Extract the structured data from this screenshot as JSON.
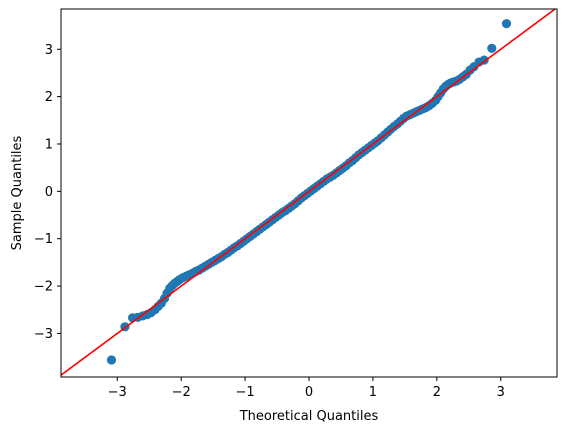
{
  "chart_data": {
    "type": "scatter",
    "title": "",
    "xlabel": "Theoretical Quantiles",
    "ylabel": "Sample Quantiles",
    "xlim": [
      -3.88,
      3.88
    ],
    "ylim": [
      -3.92,
      3.85
    ],
    "x_ticks": [
      -3,
      -2,
      -1,
      0,
      1,
      2,
      3
    ],
    "y_ticks": [
      -3,
      -2,
      -1,
      0,
      1,
      2,
      3
    ],
    "x_tick_labels": [
      "−3",
      "−2",
      "−1",
      "0",
      "1",
      "2",
      "3"
    ],
    "y_tick_labels": [
      "−3",
      "−2",
      "−1",
      "0",
      "1",
      "2",
      "3"
    ],
    "grid": false,
    "reference_line": {
      "slope": 1,
      "intercept": 0,
      "color": "#ff0000"
    },
    "point_color": "#1f77b4",
    "points": [
      [
        -3.09,
        -3.56
      ],
      [
        -2.88,
        -2.86
      ],
      [
        -2.76,
        -2.67
      ],
      [
        -2.68,
        -2.66
      ],
      [
        -2.6,
        -2.63
      ],
      [
        -2.53,
        -2.6
      ],
      [
        -2.47,
        -2.56
      ],
      [
        -2.41,
        -2.5
      ],
      [
        -2.36,
        -2.43
      ],
      [
        -2.31,
        -2.36
      ],
      [
        -2.26,
        -2.26
      ],
      [
        -2.22,
        -2.15
      ],
      [
        -2.18,
        -2.05
      ],
      [
        -2.14,
        -1.99
      ],
      [
        -2.1,
        -1.94
      ],
      [
        -2.06,
        -1.9
      ],
      [
        -2.02,
        -1.86
      ],
      [
        -1.97,
        -1.82
      ],
      [
        -1.92,
        -1.79
      ],
      [
        -1.87,
        -1.76
      ],
      [
        -1.82,
        -1.73
      ],
      [
        -1.77,
        -1.69
      ],
      [
        -1.72,
        -1.66
      ],
      [
        -1.67,
        -1.62
      ],
      [
        -1.62,
        -1.58
      ],
      [
        -1.57,
        -1.54
      ],
      [
        -1.52,
        -1.5
      ],
      [
        -1.47,
        -1.46
      ],
      [
        -1.42,
        -1.42
      ],
      [
        -1.37,
        -1.38
      ],
      [
        -1.32,
        -1.33
      ],
      [
        -1.27,
        -1.29
      ],
      [
        -1.22,
        -1.24
      ],
      [
        -1.17,
        -1.19
      ],
      [
        -1.12,
        -1.15
      ],
      [
        -1.07,
        -1.1
      ],
      [
        -1.02,
        -1.05
      ],
      [
        -0.97,
        -1.0
      ],
      [
        -0.92,
        -0.95
      ],
      [
        -0.87,
        -0.9
      ],
      [
        -0.82,
        -0.85
      ],
      [
        -0.77,
        -0.8
      ],
      [
        -0.72,
        -0.75
      ],
      [
        -0.67,
        -0.7
      ],
      [
        -0.62,
        -0.65
      ],
      [
        -0.57,
        -0.6
      ],
      [
        -0.52,
        -0.55
      ],
      [
        -0.47,
        -0.5
      ],
      [
        -0.42,
        -0.45
      ],
      [
        -0.37,
        -0.41
      ],
      [
        -0.32,
        -0.36
      ],
      [
        -0.27,
        -0.31
      ],
      [
        -0.22,
        -0.26
      ],
      [
        -0.17,
        -0.2
      ],
      [
        -0.12,
        -0.14
      ],
      [
        -0.07,
        -0.09
      ],
      [
        -0.02,
        -0.04
      ],
      [
        0.03,
        0.01
      ],
      [
        0.08,
        0.06
      ],
      [
        0.13,
        0.11
      ],
      [
        0.18,
        0.16
      ],
      [
        0.23,
        0.21
      ],
      [
        0.28,
        0.26
      ],
      [
        0.33,
        0.3
      ],
      [
        0.38,
        0.34
      ],
      [
        0.43,
        0.39
      ],
      [
        0.48,
        0.44
      ],
      [
        0.53,
        0.49
      ],
      [
        0.58,
        0.54
      ],
      [
        0.63,
        0.6
      ],
      [
        0.68,
        0.65
      ],
      [
        0.73,
        0.71
      ],
      [
        0.78,
        0.77
      ],
      [
        0.83,
        0.82
      ],
      [
        0.88,
        0.87
      ],
      [
        0.93,
        0.92
      ],
      [
        0.98,
        0.97
      ],
      [
        1.03,
        1.02
      ],
      [
        1.08,
        1.07
      ],
      [
        1.13,
        1.13
      ],
      [
        1.18,
        1.19
      ],
      [
        1.23,
        1.25
      ],
      [
        1.28,
        1.31
      ],
      [
        1.33,
        1.37
      ],
      [
        1.38,
        1.42
      ],
      [
        1.43,
        1.48
      ],
      [
        1.48,
        1.54
      ],
      [
        1.53,
        1.59
      ],
      [
        1.58,
        1.62
      ],
      [
        1.63,
        1.65
      ],
      [
        1.68,
        1.68
      ],
      [
        1.73,
        1.71
      ],
      [
        1.78,
        1.74
      ],
      [
        1.83,
        1.77
      ],
      [
        1.88,
        1.81
      ],
      [
        1.93,
        1.86
      ],
      [
        1.98,
        1.92
      ],
      [
        2.02,
        2.0
      ],
      [
        2.06,
        2.08
      ],
      [
        2.1,
        2.16
      ],
      [
        2.14,
        2.22
      ],
      [
        2.18,
        2.26
      ],
      [
        2.22,
        2.29
      ],
      [
        2.26,
        2.31
      ],
      [
        2.31,
        2.33
      ],
      [
        2.36,
        2.37
      ],
      [
        2.41,
        2.42
      ],
      [
        2.46,
        2.47
      ],
      [
        2.52,
        2.56
      ],
      [
        2.58,
        2.63
      ],
      [
        2.66,
        2.73
      ],
      [
        2.74,
        2.77
      ],
      [
        2.86,
        3.02
      ],
      [
        3.09,
        3.54
      ]
    ]
  }
}
